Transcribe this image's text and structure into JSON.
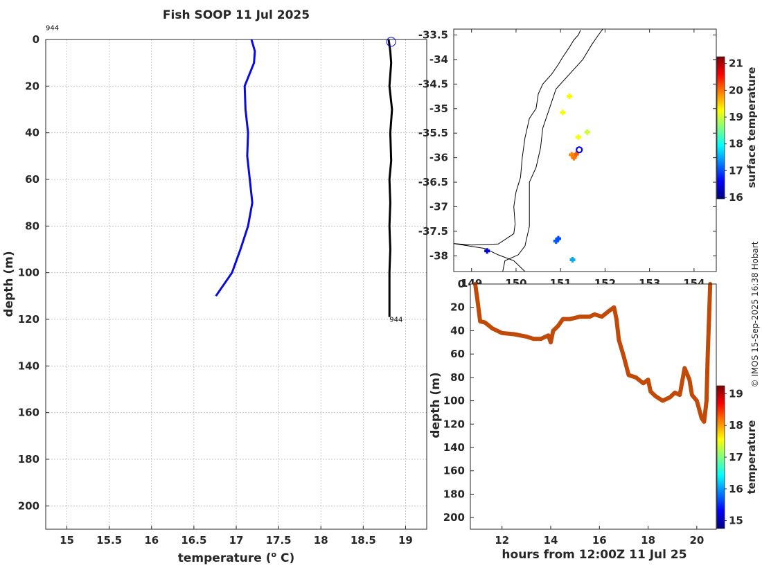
{
  "colors": {
    "temp_line": "#0a0ae0",
    "profile_line": "#000000",
    "track": "#c24a08",
    "axis": "#262626",
    "grid": "#b9b9b9"
  },
  "credit": "© IMOS 15-Sep-2025 16:38 Hobart",
  "chart_data": [
    {
      "id": "profile",
      "type": "line",
      "title": "Fish SOOP 11 Jul 2025",
      "xlabel": "temperature (o C)",
      "xlabel_main": "temperature (",
      "xlabel_sup": "o",
      "xlabel_end": " C)",
      "ylabel": "depth (m)",
      "xlim": [
        14.75,
        19.25
      ],
      "ylim": [
        0,
        210
      ],
      "y_reversed": true,
      "xticks": [
        15,
        15.5,
        16,
        16.5,
        17,
        17.5,
        18,
        18.5,
        19
      ],
      "xtick_labels": [
        "15",
        "15.5",
        "16",
        "16.5",
        "17",
        "17.5",
        "18",
        "18.5",
        "19"
      ],
      "yticks": [
        0,
        20,
        40,
        60,
        80,
        100,
        120,
        140,
        160,
        180,
        200
      ],
      "ytick_labels": [
        "0",
        "20",
        "40",
        "60",
        "80",
        "100",
        "120",
        "140",
        "160",
        "180",
        "200"
      ],
      "annotations": [
        {
          "text": "944",
          "x": 14.75,
          "y": -4
        },
        {
          "text": "944",
          "x": 18.81,
          "y": 121
        }
      ],
      "series": [
        {
          "name": "climatology",
          "x": [
            17.18,
            17.22,
            17.21,
            17.1,
            17.11,
            17.14,
            17.13,
            17.16,
            17.19,
            17.14,
            17.05,
            16.95,
            16.76
          ],
          "y": [
            0,
            5,
            10,
            20,
            30,
            40,
            50,
            60,
            70,
            80,
            90,
            100,
            110
          ]
        },
        {
          "name": "profiles",
          "x": [
            18.8,
            18.82,
            18.83,
            18.81,
            18.84,
            18.82,
            18.83,
            18.81,
            18.82,
            18.81,
            18.82,
            18.81,
            18.81,
            18.81
          ],
          "y": [
            0,
            5,
            10,
            20,
            30,
            40,
            52,
            60,
            70,
            80,
            90,
            100,
            110,
            119
          ]
        }
      ],
      "marker": {
        "x": 18.83,
        "y": 1
      }
    },
    {
      "id": "map",
      "type": "scatter",
      "xlim": [
        148.6,
        154.5
      ],
      "ylim": [
        -38.32,
        -33.38
      ],
      "xticks": [
        149,
        150,
        151,
        152,
        153,
        154
      ],
      "xtick_labels": [
        "149",
        "150",
        "151",
        "152",
        "153",
        "154"
      ],
      "yticks": [
        -33.5,
        -34,
        -34.5,
        -35,
        -35.5,
        -36,
        -36.5,
        -37,
        -37.5,
        -38
      ],
      "ytick_labels": [
        "-33.5",
        "-34",
        "-34.5",
        "-35",
        "-35.5",
        "-36",
        "-36.5",
        "-37",
        "-37.5",
        "-38"
      ],
      "colorbar": {
        "label": "surface temperature",
        "ticks": [
          16,
          17,
          18,
          19,
          20,
          21
        ],
        "tick_labels": [
          "16",
          "17",
          "18",
          "19",
          "20",
          "21"
        ],
        "range": [
          15.95,
          21.25
        ]
      },
      "coast": [
        [
          150.2,
          -38.32
        ],
        [
          149.95,
          -38.1
        ],
        [
          149.6,
          -37.98
        ],
        [
          149.3,
          -37.85
        ],
        [
          148.6,
          -37.75
        ],
        [
          149.0,
          -37.78
        ],
        [
          149.6,
          -37.76
        ],
        [
          149.95,
          -37.55
        ],
        [
          149.98,
          -37.35
        ],
        [
          149.95,
          -37.0
        ],
        [
          150.0,
          -36.7
        ],
        [
          150.1,
          -36.4
        ],
        [
          150.14,
          -36.0
        ],
        [
          150.2,
          -35.6
        ],
        [
          150.3,
          -35.2
        ],
        [
          150.45,
          -35.0
        ],
        [
          150.5,
          -34.7
        ],
        [
          150.6,
          -34.5
        ],
        [
          150.8,
          -34.3
        ],
        [
          150.95,
          -34.1
        ],
        [
          151.05,
          -33.95
        ],
        [
          151.2,
          -33.75
        ],
        [
          151.3,
          -33.6
        ],
        [
          151.4,
          -33.5
        ],
        [
          151.45,
          -33.4
        ]
      ],
      "shelf": [
        [
          149.7,
          -38.32
        ],
        [
          149.75,
          -38.1
        ],
        [
          150.05,
          -37.98
        ],
        [
          150.2,
          -37.8
        ],
        [
          150.3,
          -37.4
        ],
        [
          150.3,
          -36.9
        ],
        [
          150.3,
          -36.5
        ],
        [
          150.45,
          -36.2
        ],
        [
          150.55,
          -35.8
        ],
        [
          150.6,
          -35.4
        ],
        [
          150.75,
          -35.0
        ],
        [
          150.9,
          -34.6
        ],
        [
          151.3,
          -34.2
        ],
        [
          151.5,
          -34.0
        ],
        [
          151.7,
          -33.7
        ],
        [
          151.85,
          -33.5
        ],
        [
          151.95,
          -33.38
        ]
      ],
      "points": [
        {
          "lon": 151.3,
          "lat": -36.0,
          "t": 20.0
        },
        {
          "lon": 151.35,
          "lat": -35.93,
          "t": 20.1
        },
        {
          "lon": 151.25,
          "lat": -35.94,
          "t": 19.9
        },
        {
          "lon": 151.2,
          "lat": -34.75,
          "t": 19.3
        },
        {
          "lon": 151.05,
          "lat": -35.08,
          "t": 19.2
        },
        {
          "lon": 151.4,
          "lat": -35.58,
          "t": 19.2
        },
        {
          "lon": 151.6,
          "lat": -35.48,
          "t": 19.0
        },
        {
          "lon": 150.9,
          "lat": -37.7,
          "t": 17.1
        },
        {
          "lon": 150.95,
          "lat": -37.65,
          "t": 17.0
        },
        {
          "lon": 151.27,
          "lat": -38.08,
          "t": 17.5
        },
        {
          "lon": 149.35,
          "lat": -37.9,
          "t": 16.4
        }
      ],
      "current_position": {
        "lon": 151.42,
        "lat": -35.84
      }
    },
    {
      "id": "track",
      "type": "line",
      "xlabel": "hours from 12:00Z 11 Jul 25",
      "ylabel": "depth (m)",
      "xlim": [
        10.7,
        20.8
      ],
      "ylim": [
        0,
        210
      ],
      "y_reversed": true,
      "xticks": [
        12,
        14,
        16,
        18,
        20
      ],
      "xtick_labels": [
        "12",
        "14",
        "16",
        "18",
        "20"
      ],
      "yticks": [
        0,
        20,
        40,
        60,
        80,
        100,
        120,
        140,
        160,
        180,
        200
      ],
      "ytick_labels": [
        "0",
        "20",
        "40",
        "60",
        "80",
        "100",
        "120",
        "140",
        "160",
        "180",
        "200"
      ],
      "colorbar": {
        "label": "temperature",
        "ticks": [
          15,
          16,
          17,
          18,
          19
        ],
        "tick_labels": [
          "15",
          "16",
          "17",
          "18",
          "19"
        ],
        "range": [
          14.75,
          19.25
        ]
      },
      "x": [
        10.9,
        11.0,
        11.1,
        11.3,
        11.6,
        12.0,
        12.5,
        13.0,
        13.3,
        13.6,
        13.9,
        14.0,
        14.1,
        14.3,
        14.5,
        14.8,
        15.2,
        15.6,
        15.8,
        16.1,
        16.4,
        16.6,
        16.7,
        16.8,
        17.0,
        17.2,
        17.5,
        17.8,
        18.0,
        18.1,
        18.3,
        18.6,
        18.9,
        19.1,
        19.3,
        19.5,
        19.7,
        19.8,
        20.0,
        20.2,
        20.3,
        20.4,
        20.45,
        20.5,
        20.55
      ],
      "y": [
        0,
        15,
        32,
        33,
        38,
        42,
        43,
        45,
        47,
        47,
        44,
        50,
        40,
        36,
        30,
        30,
        28,
        28,
        26,
        28,
        23,
        20,
        30,
        48,
        62,
        78,
        80,
        85,
        82,
        92,
        96,
        100,
        97,
        93,
        95,
        72,
        82,
        95,
        100,
        115,
        118,
        100,
        60,
        30,
        0
      ]
    }
  ]
}
